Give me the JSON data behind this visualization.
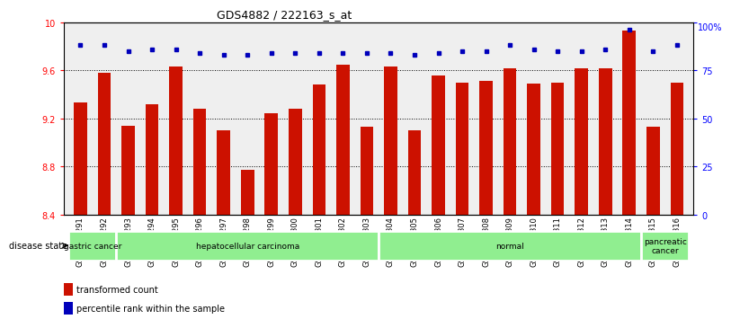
{
  "title": "GDS4882 / 222163_s_at",
  "categories": [
    "GSM1200291",
    "GSM1200292",
    "GSM1200293",
    "GSM1200294",
    "GSM1200295",
    "GSM1200296",
    "GSM1200297",
    "GSM1200298",
    "GSM1200299",
    "GSM1200300",
    "GSM1200301",
    "GSM1200302",
    "GSM1200303",
    "GSM1200304",
    "GSM1200305",
    "GSM1200306",
    "GSM1200307",
    "GSM1200308",
    "GSM1200309",
    "GSM1200310",
    "GSM1200311",
    "GSM1200312",
    "GSM1200313",
    "GSM1200314",
    "GSM1200315",
    "GSM1200316"
  ],
  "bar_values": [
    9.33,
    9.58,
    9.14,
    9.32,
    9.63,
    9.28,
    9.1,
    8.77,
    9.24,
    9.28,
    9.48,
    9.65,
    9.13,
    9.63,
    9.1,
    9.56,
    9.5,
    9.51,
    9.62,
    9.49,
    9.5,
    9.62,
    9.62,
    9.93,
    9.13,
    9.5
  ],
  "percentile_values": [
    88,
    88,
    85,
    86,
    86,
    84,
    83,
    83,
    84,
    84,
    84,
    84,
    84,
    84,
    83,
    84,
    85,
    85,
    88,
    86,
    85,
    85,
    86,
    96,
    85,
    88
  ],
  "ylim": [
    8.4,
    10.0
  ],
  "yticks_left": [
    8.4,
    8.8,
    9.2,
    9.6,
    10.0
  ],
  "yticks_right": [
    0,
    25,
    50,
    75,
    100
  ],
  "bar_color": "#CC1100",
  "dot_color": "#0000BB",
  "group_boundaries": [
    0,
    2,
    13,
    24,
    26
  ],
  "group_labels": [
    "gastric cancer",
    "hepatocellular carcinoma",
    "normal",
    "pancreatic\ncancer"
  ],
  "group_color": "#90EE90",
  "legend_bar_label": "transformed count",
  "legend_dot_label": "percentile rank within the sample",
  "disease_state_label": "disease state"
}
